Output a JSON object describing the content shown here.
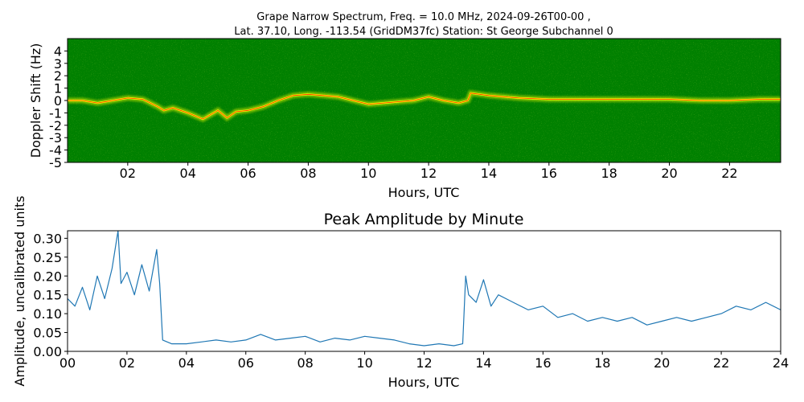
{
  "figure": {
    "title_line1": "Grape Narrow Spectrum, Freq. = 10.0 MHz, 2024-09-26T00-00 ,",
    "title_line2": "Lat.  37.10, Long. -113.54 (GridDM37fc) Station: St George Subchannel 0"
  },
  "chart_data": [
    {
      "type": "heatmap",
      "title": "",
      "xlabel": "Hours, UTC",
      "ylabel": "Doppler Shift (Hz)",
      "xlim": [
        0,
        23.7
      ],
      "ylim": [
        -5,
        5
      ],
      "xticks": [
        "02",
        "04",
        "06",
        "08",
        "10",
        "12",
        "14",
        "16",
        "18",
        "20",
        "22"
      ],
      "xtick_values": [
        2,
        4,
        6,
        8,
        10,
        12,
        14,
        16,
        18,
        20,
        22
      ],
      "yticks": [
        "-5",
        "-4",
        "-3",
        "-2",
        "-1",
        "0",
        "1",
        "2",
        "3",
        "4"
      ],
      "ytick_values": [
        -5,
        -4,
        -3,
        -2,
        -1,
        0,
        1,
        2,
        3,
        4
      ],
      "colors": {
        "background": "#008000",
        "trace": "#ffff00",
        "peak": "#ff0000",
        "noise": "#9acd32"
      },
      "doppler_trace": {
        "hours": [
          0,
          0.5,
          1.0,
          1.5,
          2.0,
          2.5,
          3.0,
          3.2,
          3.5,
          4.0,
          4.5,
          5.0,
          5.3,
          5.6,
          6.0,
          6.5,
          7.0,
          7.5,
          8.0,
          8.5,
          9.0,
          9.5,
          10.0,
          10.5,
          11.0,
          11.5,
          12.0,
          12.5,
          13.0,
          13.3,
          13.4,
          14.0,
          15.0,
          16.0,
          17.0,
          18.0,
          19.0,
          20.0,
          21.0,
          22.0,
          23.0,
          23.7
        ],
        "doppler_hz": [
          0,
          0,
          -0.2,
          0,
          0.2,
          0.1,
          -0.5,
          -0.8,
          -0.6,
          -1.0,
          -1.5,
          -0.8,
          -1.4,
          -0.9,
          -0.8,
          -0.5,
          0,
          0.4,
          0.5,
          0.4,
          0.3,
          0,
          -0.3,
          -0.2,
          -0.1,
          0,
          0.3,
          0,
          -0.2,
          0,
          0.6,
          0.4,
          0.2,
          0.1,
          0.1,
          0.1,
          0.1,
          0.1,
          0,
          0,
          0.1,
          0.1
        ]
      }
    },
    {
      "type": "line",
      "title": "Peak Amplitude by Minute",
      "xlabel": "Hours, UTC",
      "ylabel": "Amplitude, uncalibrated units",
      "xlim": [
        0,
        24
      ],
      "ylim": [
        0,
        0.32
      ],
      "xticks": [
        "00",
        "02",
        "04",
        "06",
        "08",
        "10",
        "12",
        "14",
        "16",
        "18",
        "20",
        "22",
        "24"
      ],
      "xtick_values": [
        0,
        2,
        4,
        6,
        8,
        10,
        12,
        14,
        16,
        18,
        20,
        22,
        24
      ],
      "yticks": [
        "0.00",
        "0.05",
        "0.10",
        "0.15",
        "0.20",
        "0.25",
        "0.30"
      ],
      "ytick_values": [
        0,
        0.05,
        0.1,
        0.15,
        0.2,
        0.25,
        0.3
      ],
      "line_color": "#1f77b4",
      "series": [
        {
          "x": [
            0,
            0.25,
            0.5,
            0.75,
            1.0,
            1.25,
            1.5,
            1.7,
            1.8,
            2.0,
            2.25,
            2.5,
            2.75,
            3.0,
            3.1,
            3.2,
            3.5,
            4.0,
            4.5,
            5.0,
            5.5,
            6.0,
            6.5,
            7.0,
            7.5,
            8.0,
            8.5,
            9.0,
            9.5,
            10.0,
            10.5,
            11.0,
            11.5,
            12.0,
            12.5,
            13.0,
            13.3,
            13.4,
            13.5,
            13.75,
            14.0,
            14.25,
            14.5,
            15.0,
            15.5,
            16.0,
            16.5,
            17.0,
            17.5,
            18.0,
            18.5,
            19.0,
            19.5,
            20.0,
            20.5,
            21.0,
            21.5,
            22.0,
            22.5,
            23.0,
            23.5,
            24.0
          ],
          "values": [
            0.14,
            0.12,
            0.17,
            0.11,
            0.2,
            0.14,
            0.22,
            0.32,
            0.18,
            0.21,
            0.15,
            0.23,
            0.16,
            0.27,
            0.18,
            0.03,
            0.02,
            0.02,
            0.025,
            0.03,
            0.025,
            0.03,
            0.045,
            0.03,
            0.035,
            0.04,
            0.025,
            0.035,
            0.03,
            0.04,
            0.035,
            0.03,
            0.02,
            0.015,
            0.02,
            0.015,
            0.02,
            0.2,
            0.15,
            0.13,
            0.19,
            0.12,
            0.15,
            0.13,
            0.11,
            0.12,
            0.09,
            0.1,
            0.08,
            0.09,
            0.08,
            0.09,
            0.07,
            0.08,
            0.09,
            0.08,
            0.09,
            0.1,
            0.12,
            0.11,
            0.13,
            0.11
          ]
        }
      ]
    }
  ]
}
